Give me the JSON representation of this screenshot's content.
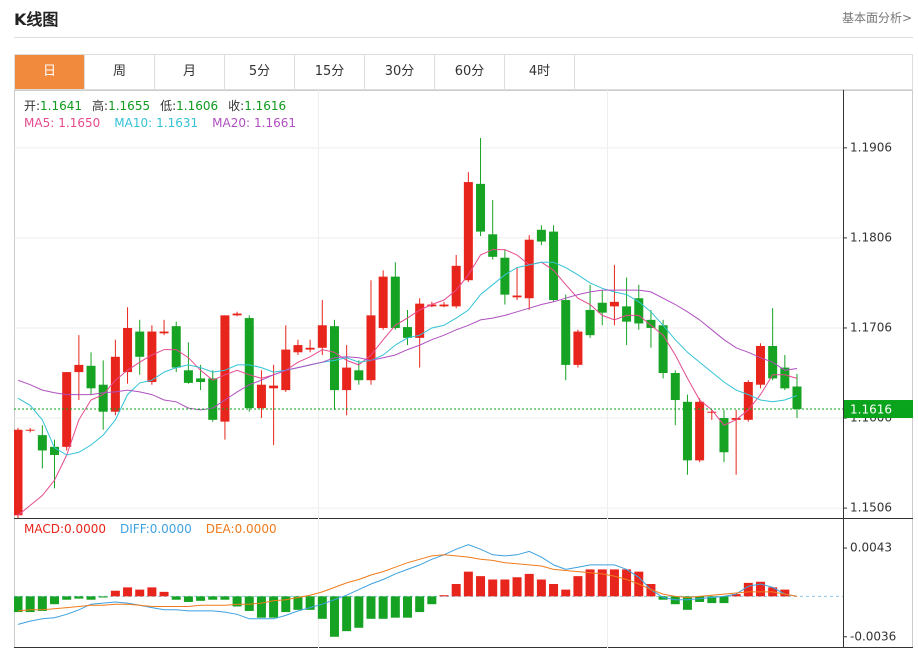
{
  "header": {
    "title": "K线图",
    "link": "基本面分析>"
  },
  "tabs": {
    "items": [
      "日",
      "周",
      "月",
      "5分",
      "15分",
      "30分",
      "60分",
      "4时"
    ],
    "active": 0
  },
  "chart_data": [
    {
      "type": "candlestick",
      "up_color": "#e8251c",
      "down_color": "#16a323",
      "ohlc_names": [
        "开:",
        "高:",
        "低:",
        "收:"
      ],
      "ohlc_values": [
        1.1641,
        1.1655,
        1.1606,
        1.1616
      ],
      "ohlc_color": "#0d9a1e",
      "open": [
        1.1498,
        1.1593,
        1.1587,
        1.1574,
        1.1574,
        1.1657,
        1.1664,
        1.1643,
        1.1613,
        1.1657,
        1.1702,
        1.1646,
        1.17,
        1.1708,
        1.1659,
        1.165,
        1.165,
        1.1602,
        1.172,
        1.1717,
        1.1617,
        1.1639,
        1.1637,
        1.1679,
        1.1682,
        1.1684,
        1.1708,
        1.1637,
        1.1659,
        1.1648,
        1.1706,
        1.1763,
        1.1707,
        1.1695,
        1.173,
        1.173,
        1.173,
        1.1759,
        1.1866,
        1.181,
        1.1784,
        1.174,
        1.1739,
        1.1815,
        1.1813,
        1.1737,
        1.1665,
        1.1726,
        1.1734,
        1.173,
        1.173,
        1.1739,
        1.1715,
        1.1709,
        1.1656,
        1.1624,
        1.1559,
        1.1612,
        1.1606,
        1.1604,
        1.1604,
        1.1643,
        1.1686,
        1.1662,
        1.1641
      ],
      "high": [
        1.1595,
        1.1595,
        1.1598,
        1.1582,
        1.1657,
        1.1698,
        1.1679,
        1.167,
        1.1693,
        1.1729,
        1.1715,
        1.1709,
        1.1715,
        1.1713,
        1.169,
        1.1665,
        1.1659,
        1.172,
        1.1724,
        1.172,
        1.1659,
        1.1665,
        1.1709,
        1.1693,
        1.1693,
        1.1737,
        1.1715,
        1.1687,
        1.167,
        1.1759,
        1.177,
        1.1779,
        1.1726,
        1.1739,
        1.1735,
        1.1735,
        1.1787,
        1.1879,
        1.1917,
        1.1848,
        1.1793,
        1.1773,
        1.1809,
        1.182,
        1.182,
        1.1743,
        1.1704,
        1.1754,
        1.1748,
        1.1776,
        1.1762,
        1.1754,
        1.1726,
        1.1715,
        1.1659,
        1.1632,
        1.1628,
        1.1615,
        1.1615,
        1.1615,
        1.1648,
        1.1689,
        1.1728,
        1.1676,
        1.1655
      ],
      "low": [
        1.1495,
        1.159,
        1.155,
        1.1528,
        1.157,
        1.1626,
        1.1632,
        1.1593,
        1.1609,
        1.1644,
        1.1654,
        1.1643,
        1.1698,
        1.1657,
        1.1644,
        1.1637,
        1.1602,
        1.1582,
        1.1719,
        1.1613,
        1.1606,
        1.1576,
        1.1635,
        1.1676,
        1.1679,
        1.1676,
        1.1615,
        1.1609,
        1.1643,
        1.1643,
        1.1704,
        1.1704,
        1.1687,
        1.1662,
        1.1729,
        1.1729,
        1.1728,
        1.1757,
        1.1808,
        1.1782,
        1.1732,
        1.1737,
        1.1726,
        1.1798,
        1.1735,
        1.1648,
        1.1662,
        1.1695,
        1.1709,
        1.1709,
        1.1687,
        1.1704,
        1.1684,
        1.165,
        1.1598,
        1.1543,
        1.1557,
        1.1604,
        1.1557,
        1.1543,
        1.1602,
        1.1639,
        1.1648,
        1.1637,
        1.1606
      ],
      "close": [
        1.1593,
        1.1593,
        1.157,
        1.1565,
        1.1657,
        1.1665,
        1.1639,
        1.1613,
        1.1674,
        1.1706,
        1.1674,
        1.1702,
        1.1702,
        1.1662,
        1.1645,
        1.1646,
        1.1604,
        1.172,
        1.1722,
        1.1617,
        1.1643,
        1.1642,
        1.1682,
        1.1687,
        1.1684,
        1.1709,
        1.1637,
        1.1662,
        1.1648,
        1.172,
        1.1763,
        1.1706,
        1.1695,
        1.1733,
        1.1732,
        1.1732,
        1.1775,
        1.1868,
        1.1813,
        1.1785,
        1.1743,
        1.1742,
        1.1804,
        1.1802,
        1.1737,
        1.1665,
        1.1702,
        1.1698,
        1.1723,
        1.1735,
        1.1713,
        1.1711,
        1.1706,
        1.1656,
        1.1626,
        1.1559,
        1.1624,
        1.1613,
        1.1568,
        1.1606,
        1.1646,
        1.1686,
        1.165,
        1.1639,
        1.1616
      ],
      "series": [
        {
          "name": "MA5:",
          "color": "#e64a8f",
          "last_label": "1.1650",
          "values": [
            1.1498,
            1.1509,
            1.152,
            1.1537,
            1.1565,
            1.1604,
            1.1626,
            1.1632,
            1.1648,
            1.1659,
            1.1668,
            1.1676,
            1.1682,
            1.1682,
            1.1673,
            1.1659,
            1.1648,
            1.1654,
            1.1659,
            1.1654,
            1.165,
            1.1654,
            1.1659,
            1.1668,
            1.1674,
            1.1682,
            1.1679,
            1.167,
            1.1665,
            1.1676,
            1.1693,
            1.1709,
            1.1717,
            1.1726,
            1.1732,
            1.1737,
            1.1748,
            1.1765,
            1.1787,
            1.1793,
            1.1793,
            1.1787,
            1.1776,
            1.1779,
            1.177,
            1.1754,
            1.1739,
            1.1732,
            1.172,
            1.1715,
            1.172,
            1.172,
            1.1709,
            1.1698,
            1.1676,
            1.165,
            1.1626,
            1.1615,
            1.1598,
            1.1604,
            1.1615,
            1.1632,
            1.1654,
            1.1654,
            1.165
          ]
        },
        {
          "name": "MA10:",
          "color": "#33c3d6",
          "last_label": "1.1631",
          "values": [
            1.1628,
            1.162,
            1.1604,
            1.1573,
            1.1565,
            1.1568,
            1.1576,
            1.1587,
            1.1604,
            1.1632,
            1.1645,
            1.1648,
            1.1657,
            1.1662,
            1.1665,
            1.1662,
            1.1657,
            1.1659,
            1.1665,
            1.1665,
            1.1662,
            1.1657,
            1.1659,
            1.1662,
            1.1665,
            1.1668,
            1.167,
            1.1673,
            1.1668,
            1.167,
            1.1676,
            1.1687,
            1.1695,
            1.1698,
            1.1706,
            1.1709,
            1.1717,
            1.1726,
            1.1743,
            1.1754,
            1.1765,
            1.1773,
            1.1776,
            1.1779,
            1.1779,
            1.1773,
            1.1765,
            1.1756,
            1.175,
            1.1746,
            1.1743,
            1.1735,
            1.1724,
            1.1709,
            1.1693,
            1.1679,
            1.1668,
            1.1657,
            1.1646,
            1.1637,
            1.1632,
            1.1626,
            1.1624,
            1.1626,
            1.1631
          ]
        },
        {
          "name": "MA20:",
          "color": "#b050c0",
          "last_label": "1.1661",
          "values": [
            1.1648,
            1.1643,
            1.1637,
            1.1634,
            1.1632,
            1.1632,
            1.1632,
            1.1634,
            1.1635,
            1.1637,
            1.1635,
            1.1632,
            1.1626,
            1.1624,
            1.1617,
            1.1615,
            1.1617,
            1.1626,
            1.1635,
            1.1643,
            1.1648,
            1.1654,
            1.1659,
            1.1662,
            1.1665,
            1.1668,
            1.1673,
            1.1674,
            1.1673,
            1.167,
            1.1673,
            1.1676,
            1.1682,
            1.1687,
            1.1693,
            1.1698,
            1.1704,
            1.1709,
            1.1715,
            1.1717,
            1.172,
            1.1724,
            1.1728,
            1.1732,
            1.1735,
            1.1739,
            1.1743,
            1.1746,
            1.1748,
            1.1748,
            1.1748,
            1.1748,
            1.1746,
            1.1739,
            1.1732,
            1.1724,
            1.1715,
            1.1704,
            1.1693,
            1.1684,
            1.1679,
            1.1673,
            1.1668,
            1.1659,
            1.1661
          ]
        }
      ],
      "ylim": [
        1.1495,
        1.1968
      ],
      "yticks": [
        1.1506,
        1.1606,
        1.1706,
        1.1806,
        1.1906
      ],
      "grid": true,
      "last_price": 1.1616,
      "last_price_color": "#0aa31c"
    },
    {
      "type": "macd",
      "histogram": {
        "name": "MACD:",
        "color": "#e8251c",
        "up_color": "#e8251c",
        "down_color": "#16a323",
        "last_label": "0.0000",
        "values": [
          -0.0014,
          -0.0014,
          -0.0013,
          -0.0007,
          -0.0003,
          -0.0002,
          -0.0003,
          -0.0001,
          0.0005,
          0.0008,
          0.0006,
          0.0008,
          0.0004,
          -0.0003,
          -0.0005,
          -0.0004,
          -0.0003,
          -0.0003,
          -0.0009,
          -0.0013,
          -0.0019,
          -0.0019,
          -0.0014,
          -0.0012,
          -0.0012,
          -0.002,
          -0.0036,
          -0.0031,
          -0.0028,
          -0.002,
          -0.002,
          -0.0019,
          -0.0019,
          -0.0014,
          -0.0007,
          0.0001,
          0.0011,
          0.0022,
          0.0018,
          0.0015,
          0.0015,
          0.0017,
          0.002,
          0.0015,
          0.0011,
          0.0006,
          0.0018,
          0.0024,
          0.0024,
          0.0024,
          0.0024,
          0.0022,
          0.0011,
          -0.0003,
          -0.0007,
          -0.0012,
          -0.0005,
          -0.0006,
          -0.0006,
          0.0002,
          0.0012,
          0.0013,
          0.0008,
          0.0006,
          0
        ]
      },
      "series": [
        {
          "name": "DIFF:",
          "color": "#3ea1e0",
          "last_label": "0.0000",
          "values": [
            -0.0025,
            -0.0022,
            -0.002,
            -0.0019,
            -0.0016,
            -0.0012,
            -0.0007,
            -0.0006,
            -0.0005,
            -0.0006,
            -0.0008,
            -0.001,
            -0.0012,
            -0.0012,
            -0.0013,
            -0.0013,
            -0.0013,
            -0.0014,
            -0.0016,
            -0.002,
            -0.002,
            -0.002,
            -0.0017,
            -0.0013,
            -0.001,
            -0.0007,
            -0.0003,
            0.0001,
            0.0006,
            0.0011,
            0.0015,
            0.002,
            0.0024,
            0.0028,
            0.0033,
            0.0037,
            0.0042,
            0.0046,
            0.0042,
            0.0037,
            0.0036,
            0.0037,
            0.004,
            0.0035,
            0.0028,
            0.0024,
            0.0026,
            0.0028,
            0.0028,
            0.0028,
            0.0024,
            0.0017,
            0.0006,
            -0.0001,
            -0.0003,
            -0.0003,
            -0.0002,
            -0.0001,
            0,
            0.0002,
            0.0009,
            0.0011,
            0.0008,
            0.0002,
            0
          ]
        },
        {
          "name": "DEA:",
          "color": "#f07b1c",
          "last_label": "0.0000",
          "values": [
            -0.0013,
            -0.0012,
            -0.0012,
            -0.0011,
            -0.001,
            -0.0009,
            -0.0008,
            -0.0008,
            -0.0007,
            -0.0007,
            -0.0008,
            -0.0009,
            -0.0009,
            -0.0009,
            -0.0009,
            -0.0008,
            -0.0008,
            -0.0008,
            -0.0007,
            -0.0007,
            -0.0006,
            -0.0004,
            -0.0003,
            -0.0001,
            0.0001,
            0.0004,
            0.0008,
            0.0012,
            0.0015,
            0.0019,
            0.0022,
            0.0026,
            0.003,
            0.0033,
            0.0036,
            0.0037,
            0.0036,
            0.0035,
            0.0033,
            0.0032,
            0.003,
            0.0029,
            0.0028,
            0.0027,
            0.0024,
            0.0023,
            0.0022,
            0.0021,
            0.002,
            0.0018,
            0.0015,
            0.0011,
            0.0006,
            0.0002,
            0,
            -0.0001,
            0,
            0.0001,
            0.0002,
            0.0003,
            0.0004,
            0.0004,
            0.0004,
            0.0002,
            0
          ]
        }
      ],
      "ylim": [
        -0.0046,
        0.0068
      ],
      "yticks": [
        0.0043,
        -0.0036
      ]
    }
  ]
}
